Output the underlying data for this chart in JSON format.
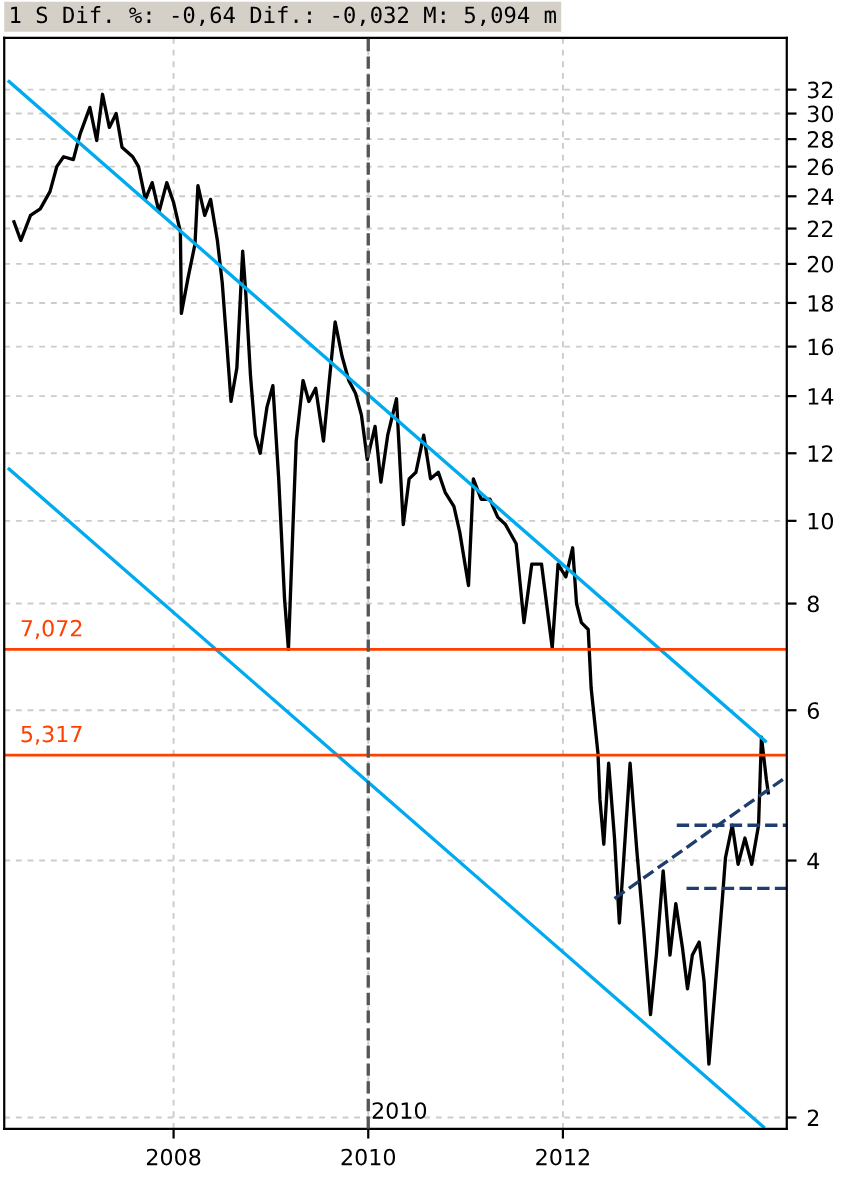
{
  "chart_data": {
    "type": "line",
    "title": "1 S Dif. %: -0,64 Dif.: -0,032 M: 5,094 m",
    "log": true,
    "grid": true,
    "xlim": [
      2006.26,
      2014.3
    ],
    "ylim": [
      1.94,
      36.8
    ],
    "xticks": [
      2008,
      2010,
      2012
    ],
    "yticks": [
      2,
      4,
      6,
      8,
      10,
      12,
      14,
      16,
      18,
      20,
      22,
      24,
      26,
      28,
      30,
      32
    ],
    "series": [
      {
        "type": "line",
        "color": "#000000",
        "line_style": "solid",
        "x": [
          2006.36,
          2006.43,
          2006.53,
          2006.63,
          2006.73,
          2006.8,
          2006.87,
          2006.97,
          2007.04,
          2007.14,
          2007.21,
          2007.27,
          2007.34,
          2007.41,
          2007.47,
          2007.58,
          2007.64,
          2007.71,
          2007.78,
          2007.85,
          2007.93,
          2008.0,
          2008.07,
          2008.08,
          2008.15,
          2008.22,
          2008.25,
          2008.32,
          2008.38,
          2008.45,
          2008.5,
          2008.54,
          2008.59,
          2008.65,
          2008.71,
          2008.74,
          2008.79,
          2008.84,
          2008.89,
          2008.96,
          2009.02,
          2009.08,
          2009.14,
          2009.18,
          2009.23,
          2009.26,
          2009.33,
          2009.39,
          2009.46,
          2009.54,
          2009.6,
          2009.66,
          2009.73,
          2009.8,
          2009.87,
          2009.93,
          2009.99,
          2010.07,
          2010.13,
          2010.2,
          2010.29,
          2010.36,
          2010.42,
          2010.49,
          2010.57,
          2010.64,
          2010.72,
          2010.79,
          2010.88,
          2010.94,
          2011.03,
          2011.08,
          2011.16,
          2011.25,
          2011.33,
          2011.41,
          2011.52,
          2011.6,
          2011.68,
          2011.78,
          2011.89,
          2011.95,
          2012.03,
          2012.1,
          2012.14,
          2012.19,
          2012.26,
          2012.29,
          2012.36,
          2012.38,
          2012.42,
          2012.47,
          2012.53,
          2012.58,
          2012.63,
          2012.69,
          2012.76,
          2012.83,
          2012.9,
          2012.96,
          2013.03,
          2013.1,
          2013.16,
          2013.23,
          2013.28,
          2013.33,
          2013.4,
          2013.45,
          2013.5,
          2013.57,
          2013.64,
          2013.67,
          2013.74,
          2013.8,
          2013.87,
          2013.94,
          2014.01,
          2014.04,
          2014.09,
          2014.11
        ],
        "values": [
          22.4,
          21.3,
          22.8,
          23.2,
          24.3,
          26.0,
          26.7,
          26.5,
          28.4,
          30.5,
          27.9,
          31.6,
          28.9,
          30.0,
          27.4,
          26.7,
          26.0,
          23.8,
          24.9,
          23.0,
          24.9,
          23.6,
          21.8,
          17.5,
          19.3,
          21.1,
          24.7,
          22.8,
          23.8,
          21.3,
          19.0,
          16.5,
          13.8,
          15.1,
          20.7,
          18.6,
          14.8,
          12.6,
          12.0,
          13.6,
          14.4,
          11.2,
          8.1,
          7.07,
          10.1,
          12.4,
          14.6,
          13.8,
          14.3,
          12.4,
          14.6,
          17.1,
          15.6,
          14.6,
          14.1,
          13.3,
          11.8,
          12.9,
          11.1,
          12.6,
          13.9,
          9.9,
          11.2,
          11.4,
          12.6,
          11.2,
          11.4,
          10.8,
          10.4,
          9.7,
          8.4,
          11.2,
          10.6,
          10.6,
          10.1,
          9.9,
          9.4,
          7.6,
          8.9,
          8.9,
          7.1,
          8.9,
          8.6,
          9.3,
          8.0,
          7.6,
          7.46,
          6.37,
          5.34,
          4.72,
          4.18,
          5.2,
          4.25,
          3.38,
          4.1,
          5.2,
          4.1,
          3.32,
          2.64,
          3.1,
          3.89,
          3.1,
          3.56,
          3.15,
          2.83,
          3.1,
          3.21,
          2.89,
          2.31,
          2.89,
          3.63,
          4.03,
          4.4,
          3.96,
          4.25,
          3.96,
          4.4,
          5.58,
          4.98,
          4.8
        ]
      },
      {
        "type": "line",
        "color": "#00aaee",
        "line_style": "solid",
        "x": [
          2006.31,
          2014.08
        ],
        "values": [
          32.7,
          5.52
        ]
      },
      {
        "type": "line",
        "color": "#00aaee",
        "line_style": "solid",
        "x": [
          2006.31,
          2014.06
        ],
        "values": [
          11.5,
          1.95
        ]
      },
      {
        "type": "line",
        "color": "#1f3d6e",
        "line_style": "dashed",
        "x": [
          2012.53,
          2014.26
        ],
        "values": [
          3.61,
          4.98
        ]
      },
      {
        "type": "line",
        "color": "#1f3d6e",
        "line_style": "dashed",
        "x": [
          2013.17,
          2014.3
        ],
        "values": [
          4.4,
          4.4
        ]
      },
      {
        "type": "line",
        "color": "#1f3d6e",
        "line_style": "dashed",
        "x": [
          2013.27,
          2014.3
        ],
        "values": [
          3.71,
          3.71
        ]
      }
    ],
    "ref_lines": [
      {
        "axis": "y",
        "value": 7.072,
        "label": "7,072",
        "color": "#ff4000",
        "line_style": "solid"
      },
      {
        "axis": "y",
        "value": 5.317,
        "label": "5,317",
        "color": "#ff4000",
        "line_style": "solid"
      },
      {
        "axis": "x",
        "value": 2010,
        "label": "2010",
        "color": "#555555",
        "line_style": "dashed"
      }
    ]
  }
}
